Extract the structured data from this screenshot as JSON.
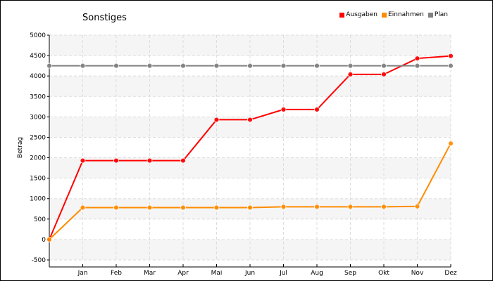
{
  "chart_data": {
    "type": "line",
    "title": "Sonstiges",
    "xlabel": "",
    "ylabel": "Betrag",
    "categories": [
      "",
      "Jan",
      "Feb",
      "Mar",
      "Apr",
      "Mai",
      "Jun",
      "Jul",
      "Aug",
      "Sep",
      "Okt",
      "Nov",
      "Dez"
    ],
    "ylim": [
      -500,
      5000
    ],
    "yticks": [
      -500,
      0,
      500,
      1000,
      1500,
      2000,
      2500,
      3000,
      3500,
      4000,
      4500,
      5000
    ],
    "grid": true,
    "legend_position": "top-right",
    "series": [
      {
        "name": "Ausgaben",
        "color": "#ff0000",
        "values": [
          0,
          1930,
          1930,
          1930,
          1930,
          2930,
          2930,
          3180,
          3180,
          4040,
          4040,
          4430,
          4490
        ]
      },
      {
        "name": "Einnahmen",
        "color": "#ff8c00",
        "values": [
          0,
          780,
          780,
          780,
          780,
          780,
          780,
          800,
          800,
          800,
          800,
          810,
          2350
        ]
      },
      {
        "name": "Plan",
        "color": "#808080",
        "values": [
          4250,
          4250,
          4250,
          4250,
          4250,
          4250,
          4250,
          4250,
          4250,
          4250,
          4250,
          4250,
          4250
        ]
      }
    ]
  }
}
